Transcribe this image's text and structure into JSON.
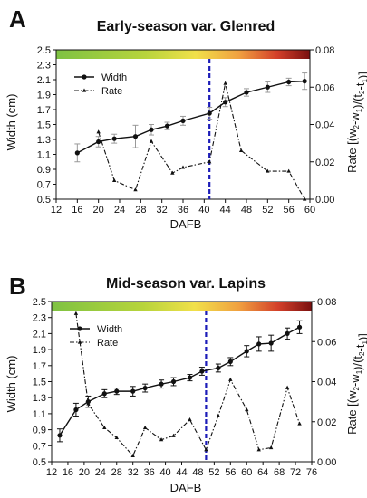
{
  "chart_data": [
    {
      "type": "line",
      "panel_letter": "A",
      "title": "Early-season var. Glenred",
      "xlabel": "DAFB",
      "ylabel": "Width (cm)",
      "ylabel_right": "Rate [(w2-w1)/(t2-t1)]",
      "xlim": [
        12,
        60
      ],
      "ylim": [
        0.5,
        2.5
      ],
      "ylim_right": [
        0.0,
        0.08
      ],
      "x_ticks": [
        "12",
        "16",
        "20",
        "24",
        "28",
        "32",
        "36",
        "40",
        "44",
        "48",
        "52",
        "56",
        "60"
      ],
      "y_ticks": [
        "0.5",
        "0.7",
        "0.9",
        "1.1",
        "1.3",
        "1.5",
        "1.7",
        "1.9",
        "2.1",
        "2.3",
        "2.5"
      ],
      "y_ticks_right": [
        "0.00",
        "0.02",
        "0.04",
        "0.06",
        "0.08"
      ],
      "vline_x": 41,
      "legend_position": "top-left",
      "series": [
        {
          "name": "Width",
          "axis": "left",
          "style": "solid-circle",
          "x": [
            16,
            20,
            23,
            27,
            30,
            33,
            36,
            41,
            44,
            48,
            52,
            56,
            59
          ],
          "y": [
            1.12,
            1.27,
            1.31,
            1.34,
            1.43,
            1.48,
            1.55,
            1.65,
            1.8,
            1.93,
            2.0,
            2.07,
            2.08
          ],
          "err": [
            0.12,
            0.07,
            0.06,
            0.15,
            0.07,
            0.05,
            0.06,
            0.08,
            0.06,
            0.05,
            0.07,
            0.05,
            0.11
          ]
        },
        {
          "name": "Rate",
          "axis": "right",
          "style": "dash-dot-triangle",
          "x": [
            20,
            23,
            27,
            30,
            34,
            36,
            41,
            44,
            47,
            52,
            56,
            59
          ],
          "y": [
            0.036,
            0.01,
            0.005,
            0.031,
            0.014,
            0.017,
            0.02,
            0.062,
            0.026,
            0.015,
            0.015,
            0.0
          ]
        }
      ]
    },
    {
      "type": "line",
      "panel_letter": "B",
      "title": "Mid-season var. Lapins",
      "xlabel": "DAFB",
      "ylabel": "Width (cm)",
      "ylabel_right": "Rate [(w2-w1)/(t2-t1)]",
      "xlim": [
        12,
        76
      ],
      "ylim": [
        0.5,
        2.5
      ],
      "ylim_right": [
        0.0,
        0.08
      ],
      "x_ticks": [
        "12",
        "16",
        "20",
        "24",
        "28",
        "32",
        "36",
        "40",
        "44",
        "48",
        "52",
        "56",
        "60",
        "64",
        "68",
        "72",
        "76"
      ],
      "y_ticks": [
        "0.5",
        "0.7",
        "0.9",
        "1.1",
        "1.3",
        "1.5",
        "1.7",
        "1.9",
        "2.1",
        "2.3",
        "2.5"
      ],
      "y_ticks_right": [
        "0.00",
        "0.02",
        "0.04",
        "0.06",
        "0.08"
      ],
      "vline_x": 50,
      "legend_position": "top-left",
      "series": [
        {
          "name": "Width",
          "axis": "left",
          "style": "solid-circle",
          "x": [
            14,
            18,
            21,
            25,
            28,
            32,
            35,
            39,
            42,
            46,
            49,
            53,
            56,
            60,
            63,
            66,
            70,
            73
          ],
          "y": [
            0.83,
            1.15,
            1.25,
            1.35,
            1.38,
            1.38,
            1.42,
            1.47,
            1.5,
            1.55,
            1.63,
            1.67,
            1.75,
            1.88,
            1.97,
            1.98,
            2.1,
            2.18
          ],
          "err": [
            0.08,
            0.08,
            0.07,
            0.05,
            0.04,
            0.06,
            0.05,
            0.05,
            0.05,
            0.04,
            0.05,
            0.05,
            0.05,
            0.07,
            0.09,
            0.1,
            0.07,
            0.08
          ]
        },
        {
          "name": "Rate",
          "axis": "right",
          "style": "dash-dot-triangle",
          "x": [
            18,
            21,
            25,
            28,
            32,
            35,
            39,
            42,
            46,
            50,
            53,
            56,
            60,
            63,
            66,
            70,
            73
          ],
          "y": [
            0.074,
            0.029,
            0.017,
            0.012,
            0.003,
            0.017,
            0.011,
            0.013,
            0.021,
            0.006,
            0.023,
            0.041,
            0.026,
            0.006,
            0.007,
            0.037,
            0.019
          ]
        }
      ]
    }
  ]
}
